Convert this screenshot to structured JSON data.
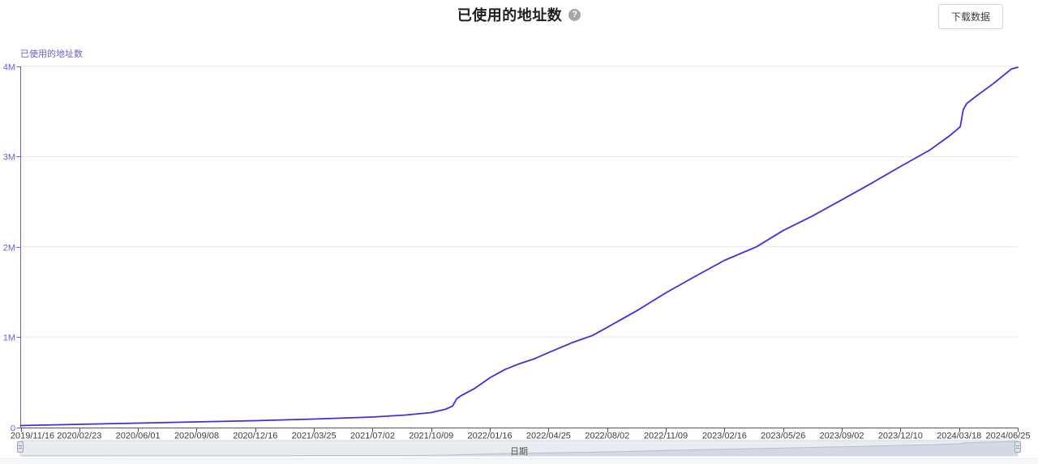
{
  "header": {
    "title": "已使用的地址数",
    "help_glyph": "?",
    "download_label": "下载数据"
  },
  "chart_data": {
    "type": "line",
    "title": "已使用的地址数",
    "y_axis_name": "已使用的地址数",
    "x_axis_name": "日期",
    "ylim": [
      0,
      4000000
    ],
    "grid": true,
    "legend_position": "none",
    "line_color": "#4a2bdb",
    "axis_color": "#6e5fd0",
    "x_label_color": "#3c3c3c",
    "x_axis_line_color": "#555555",
    "grid_color": "#e7e7e7",
    "y_ticks": [
      {
        "label": "0",
        "value": 0
      },
      {
        "label": "1M",
        "value": 1000000
      },
      {
        "label": "2M",
        "value": 2000000
      },
      {
        "label": "3M",
        "value": 3000000
      },
      {
        "label": "4M",
        "value": 4000000
      }
    ],
    "x_ticks": [
      "2019/11/16",
      "2020/02/23",
      "2020/06/01",
      "2020/09/08",
      "2020/12/16",
      "2021/03/25",
      "2021/07/02",
      "2021/10/09",
      "2022/01/16",
      "2022/04/25",
      "2022/08/02",
      "2022/11/09",
      "2023/02/16",
      "2023/05/26",
      "2023/09/02",
      "2023/12/10",
      "2024/03/18",
      "2024/06/25"
    ],
    "series": [
      {
        "name": "已使用的地址数",
        "points": [
          [
            "2019/11/16",
            18000
          ],
          [
            "2020/02/23",
            31000
          ],
          [
            "2020/06/01",
            45000
          ],
          [
            "2020/09/08",
            58000
          ],
          [
            "2020/12/16",
            72000
          ],
          [
            "2021/03/25",
            90000
          ],
          [
            "2021/07/02",
            112000
          ],
          [
            "2021/08/27",
            135000
          ],
          [
            "2021/10/09",
            162000
          ],
          [
            "2021/11/02",
            198000
          ],
          [
            "2021/11/14",
            234000
          ],
          [
            "2021/11/21",
            315000
          ],
          [
            "2021/11/29",
            351000
          ],
          [
            "2021/12/22",
            432000
          ],
          [
            "2022/01/16",
            548000
          ],
          [
            "2022/02/10",
            638000
          ],
          [
            "2022/03/06",
            701000
          ],
          [
            "2022/03/31",
            755000
          ],
          [
            "2022/04/25",
            827000
          ],
          [
            "2022/06/03",
            935000
          ],
          [
            "2022/07/08",
            1016000
          ],
          [
            "2022/08/02",
            1106000
          ],
          [
            "2022/09/22",
            1295000
          ],
          [
            "2022/11/09",
            1490000
          ],
          [
            "2022/12/28",
            1670000
          ],
          [
            "2023/02/16",
            1850000
          ],
          [
            "2023/04/11",
            2000000
          ],
          [
            "2023/05/26",
            2180000
          ],
          [
            "2023/07/14",
            2340000
          ],
          [
            "2023/09/02",
            2520000
          ],
          [
            "2023/10/21",
            2700000
          ],
          [
            "2023/12/10",
            2890000
          ],
          [
            "2024/01/28",
            3070000
          ],
          [
            "2024/03/04",
            3240000
          ],
          [
            "2024/03/20",
            3330000
          ],
          [
            "2024/03/25",
            3520000
          ],
          [
            "2024/03/31",
            3590000
          ],
          [
            "2024/04/18",
            3680000
          ],
          [
            "2024/05/15",
            3810000
          ],
          [
            "2024/06/14",
            3970000
          ],
          [
            "2024/06/25",
            3990000
          ]
        ]
      }
    ]
  },
  "datazoom": {
    "label": "日期",
    "track_color": "#e8ebf0",
    "track_border": "#d5dae2",
    "fill_color": "#d2d9e4",
    "edge_color": "#b6c0ce",
    "handle_color": "#dfe3ea",
    "handle_border": "#9aa7ba"
  }
}
